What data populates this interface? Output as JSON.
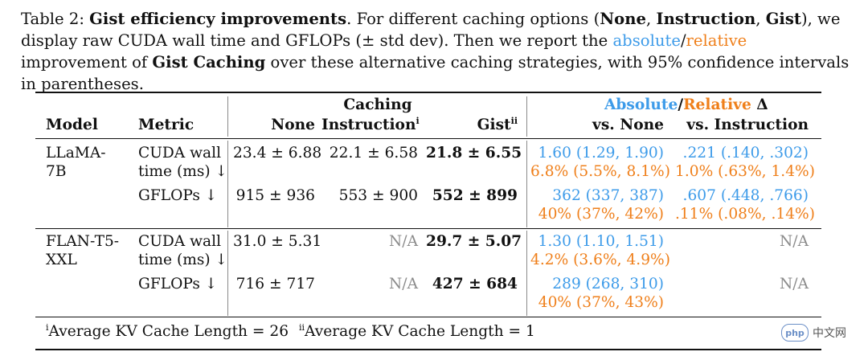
{
  "caption": {
    "label": "Table 2:",
    "title": "Gist efficiency improvements",
    "t1": ". For different caching options (",
    "opt_none": "None",
    "sep1": ", ",
    "opt_instruction": "Instruction",
    "sep2": ", ",
    "opt_gist": "Gist",
    "t2": "), we display raw CUDA wall time and GFLOPs (± std dev). Then we report the ",
    "absolute": "absolute",
    "slash": "/",
    "relative": "relative",
    "t3": " improvement of ",
    "gist_caching": "Gist Caching",
    "t4": " over these alternative caching strategies, with 95% confidence intervals in parentheses.",
    "colors": {
      "absolute": "#3d9be9",
      "relative": "#ef7f1a"
    }
  },
  "header": {
    "caching": "Caching",
    "model": "Model",
    "metric": "Metric",
    "none": "None",
    "instruction": "Instruction",
    "instruction_sup": "i",
    "gist": "Gist",
    "gist_sup": "ii",
    "absolute": "Absolute",
    "slash": "/",
    "relative": "Relative",
    "delta": " Δ",
    "vs_none": "vs. None",
    "vs_instruction": "vs. Instruction"
  },
  "rows": [
    {
      "model_line1": "LLaMA-",
      "model_line2": "7B",
      "metrics": [
        {
          "metric_line1": "CUDA wall",
          "metric_line2": "time (ms) ↓",
          "none": "23.4 ± 6.88",
          "instruction": "22.1 ± 6.58",
          "gist": "21.8 ± 6.55",
          "vs_none_abs": "1.60 (1.29, 1.90)",
          "vs_none_rel": "6.8% (5.5%, 8.1%)",
          "vs_instr_abs": ".221 (.140, .302)",
          "vs_instr_rel": "1.0% (.63%, 1.4%)"
        },
        {
          "metric_line1": "GFLOPs ↓",
          "none": "915 ± 936",
          "instruction": "553 ± 900",
          "gist": "552 ± 899",
          "vs_none_abs": "362 (337, 387)",
          "vs_none_rel": "40% (37%, 42%)",
          "vs_instr_abs": ".607 (.448, .766)",
          "vs_instr_rel": ".11% (.08%, .14%)"
        }
      ]
    },
    {
      "model_line1": "FLAN-T5-",
      "model_line2": "XXL",
      "metrics": [
        {
          "metric_line1": "CUDA wall",
          "metric_line2": "time (ms) ↓",
          "none": "31.0 ± 5.31",
          "instruction": "N/A",
          "gist": "29.7 ± 5.07",
          "vs_none_abs": "1.30 (1.10, 1.51)",
          "vs_none_rel": "4.2% (3.6%, 4.9%)",
          "vs_instr_na": "N/A"
        },
        {
          "metric_line1": "GFLOPs ↓",
          "none": "716 ± 717",
          "instruction": "N/A",
          "gist": "427 ± 684",
          "vs_none_abs": "289 (268, 310)",
          "vs_none_rel": "40% (37%, 43%)",
          "vs_instr_na": "N/A"
        }
      ]
    }
  ],
  "footnotes": {
    "f1_sup": "i",
    "f1_text": "Average KV Cache Length = 26",
    "f2_sup": "ii",
    "f2_text": "Average KV Cache Length = 1"
  },
  "watermark": {
    "logo": "php",
    "text": "中文网"
  }
}
